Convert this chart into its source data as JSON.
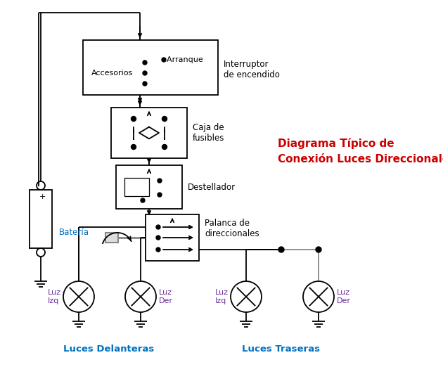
{
  "title": "Diagrama Típico de\nConexión Luces Direccionales",
  "title_color": "#cc0000",
  "bg_color": "#ffffff",
  "line_color": "#000000",
  "gray_line_color": "#888888",
  "blue_label_color": "#0070c0",
  "purple_label_color": "#7030a0",
  "component_labels": {
    "interruptor": "Interruptor\nde encendido",
    "caja_fusibles": "Caja de\nfusibles",
    "destellador": "Destellador",
    "palanca": "Palanca de\ndireccionales",
    "bateria": "Batería",
    "accesorios": "Accesorios",
    "arranque": "  Arranque",
    "luces_delanteras": "Luces Delanteras",
    "luces_traseras": "Luces Traseras",
    "luz_izq": "Luz\nIzq",
    "luz_der": "Luz\nDer"
  },
  "figsize": [
    6.3,
    5.22
  ],
  "dpi": 100
}
